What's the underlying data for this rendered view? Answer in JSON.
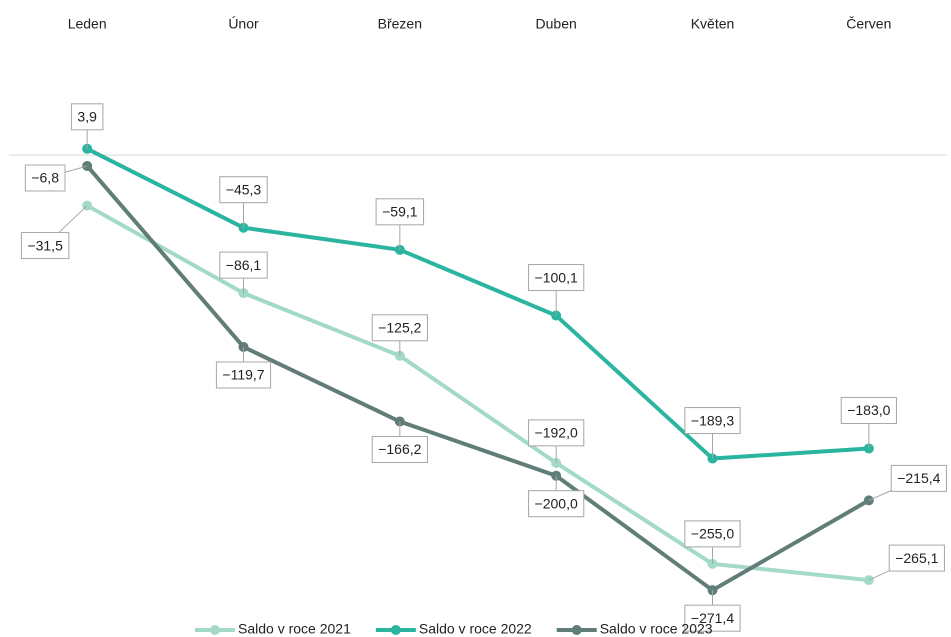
{
  "chart_data": {
    "type": "line",
    "categories": [
      "Leden",
      "Únor",
      "Březen",
      "Duben",
      "Květen",
      "Červen"
    ],
    "ylim": [
      -290,
      20
    ],
    "series": [
      {
        "name": "Saldo v roce 2021",
        "color": "#a3d9c9",
        "values": [
          -31.5,
          -86.1,
          -125.2,
          -192.0,
          -255.0,
          -265.1
        ],
        "value_labels": [
          "−31,5",
          "−86,1",
          "−125,2",
          "−192,0",
          "−255,0",
          "−265,1"
        ]
      },
      {
        "name": "Saldo v roce 2022",
        "color": "#2bb5a0",
        "values": [
          3.9,
          -45.3,
          -59.1,
          -100.1,
          -189.3,
          -183.0
        ],
        "value_labels": [
          "3,9",
          "−45,3",
          "−59,1",
          "−100,1",
          "−189,3",
          "−183,0"
        ]
      },
      {
        "name": "Saldo v roce 2023",
        "color": "#607d78",
        "values": [
          -6.8,
          -119.7,
          -166.2,
          -200.0,
          -271.4,
          -215.4
        ],
        "value_labels": [
          "−6,8",
          "−119,7",
          "−166,2",
          "−200,0",
          "−271,4",
          "−215,4"
        ]
      }
    ]
  }
}
